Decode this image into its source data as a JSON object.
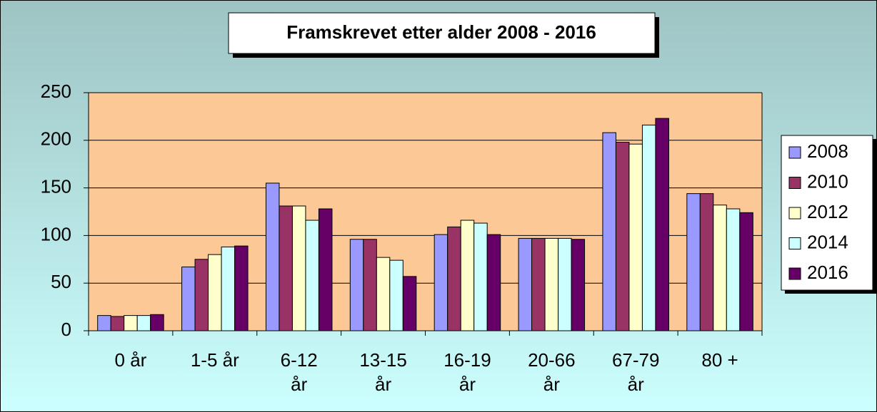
{
  "chart_data": {
    "type": "bar",
    "title": "Framskrevet etter alder 2008 - 2016",
    "categories": [
      "0 år",
      "1-5 år",
      "6-12 år",
      "13-15 år",
      "16-19 år",
      "20-66 år",
      "67-79 år",
      "80 +"
    ],
    "series": [
      {
        "name": "2008",
        "color": "#9999ff",
        "values": [
          16,
          67,
          155,
          96,
          101,
          97,
          208,
          144
        ]
      },
      {
        "name": "2010",
        "color": "#993366",
        "values": [
          15,
          75,
          131,
          96,
          109,
          97,
          198,
          144
        ]
      },
      {
        "name": "2012",
        "color": "#ffffcc",
        "values": [
          16,
          80,
          131,
          77,
          116,
          97,
          196,
          132
        ]
      },
      {
        "name": "2014",
        "color": "#ccffff",
        "values": [
          16,
          88,
          116,
          74,
          113,
          97,
          216,
          128
        ]
      },
      {
        "name": "2016",
        "color": "#660066",
        "values": [
          17,
          89,
          128,
          57,
          101,
          96,
          223,
          124
        ]
      }
    ],
    "ylim": [
      0,
      250
    ],
    "yticks": [
      0,
      50,
      100,
      150,
      200,
      250
    ],
    "grid": true,
    "legend": "right"
  }
}
